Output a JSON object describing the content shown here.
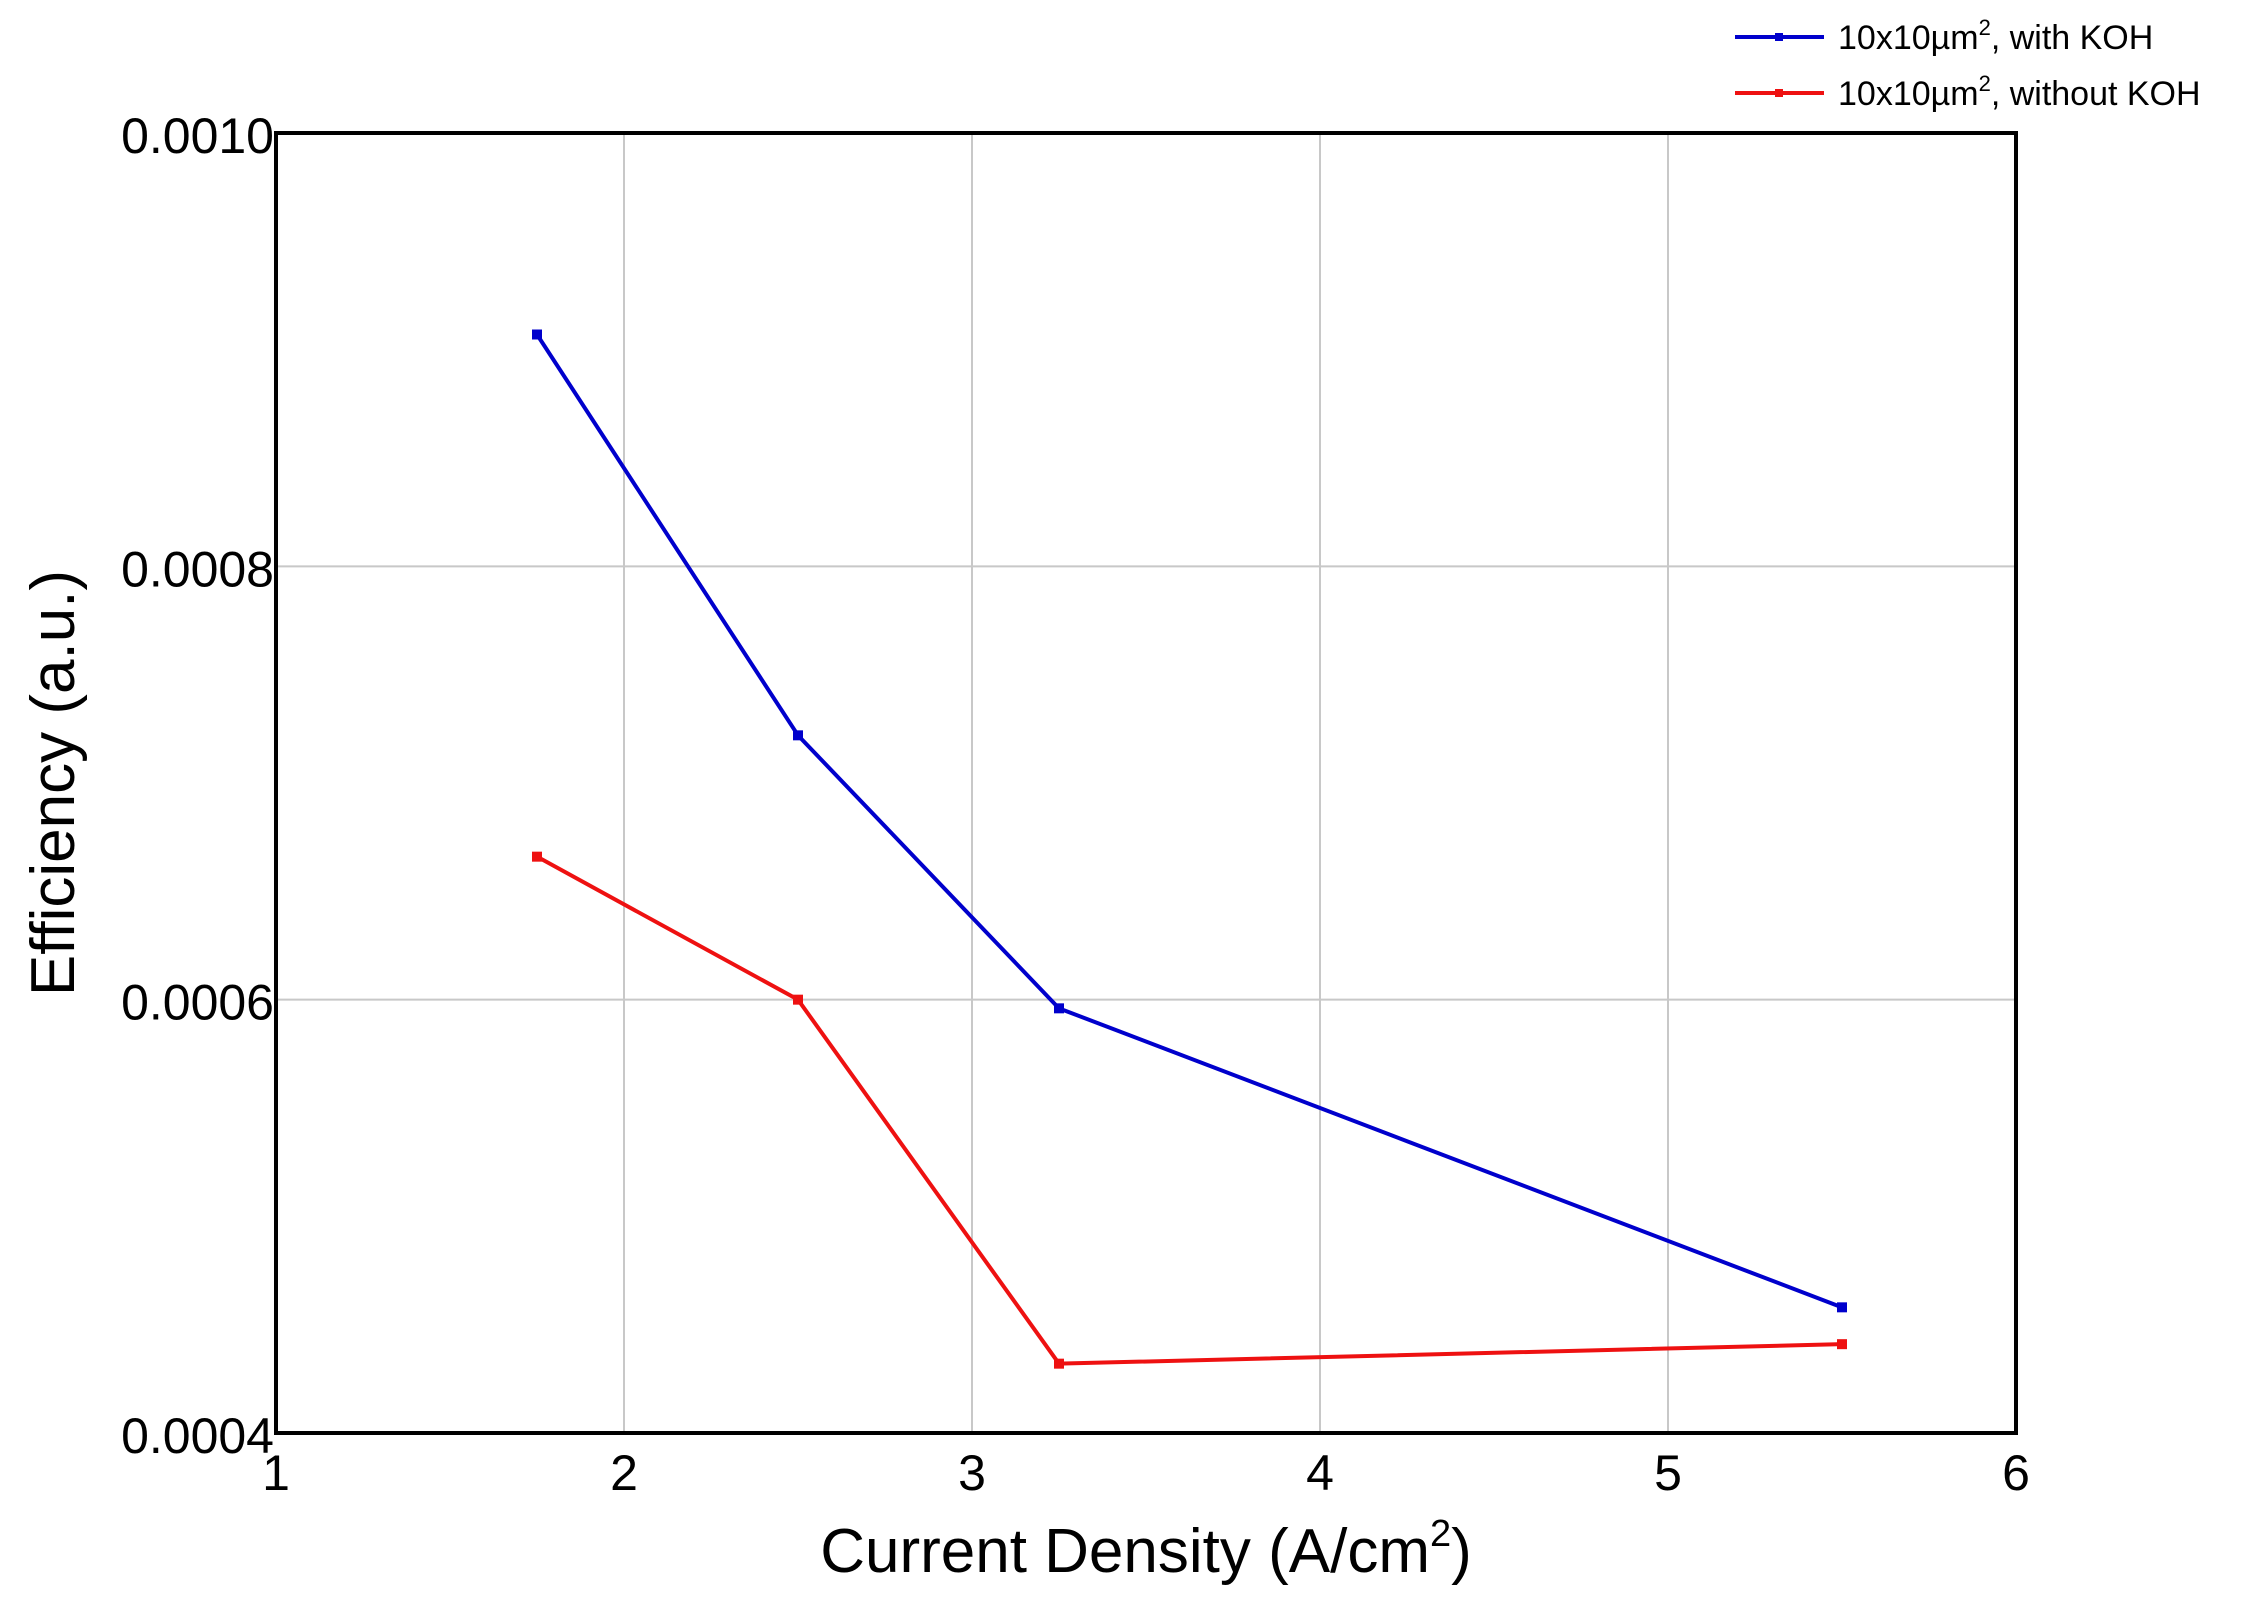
{
  "chart_data": {
    "type": "line",
    "xlabel": {
      "base": "Current Density (A/cm",
      "sup": "2",
      "tail": ")"
    },
    "ylabel": "Efficiency (a.u.)",
    "xlim": [
      1,
      6
    ],
    "ylim": [
      0.0004,
      0.001
    ],
    "x_ticks": [
      "1",
      "2",
      "3",
      "4",
      "5",
      "6"
    ],
    "y_ticks": [
      "0.0004",
      "0.0006",
      "0.0008",
      "0.0010"
    ],
    "grid": true,
    "legend_position": "top-right, outside plot",
    "x": [
      1.75,
      2.5,
      3.25,
      5.5
    ],
    "series": [
      {
        "name": {
          "base": "10x10µm",
          "sup": "2",
          "tail": ", with KOH"
        },
        "color": "#0000cc",
        "values": [
          0.000907,
          0.000722,
          0.000596,
          0.000458
        ]
      },
      {
        "name": {
          "base": "10x10µm",
          "sup": "2",
          "tail": ", without KOH"
        },
        "color": "#ee1111",
        "values": [
          0.000666,
          0.0006,
          0.000432,
          0.000441
        ]
      }
    ]
  }
}
